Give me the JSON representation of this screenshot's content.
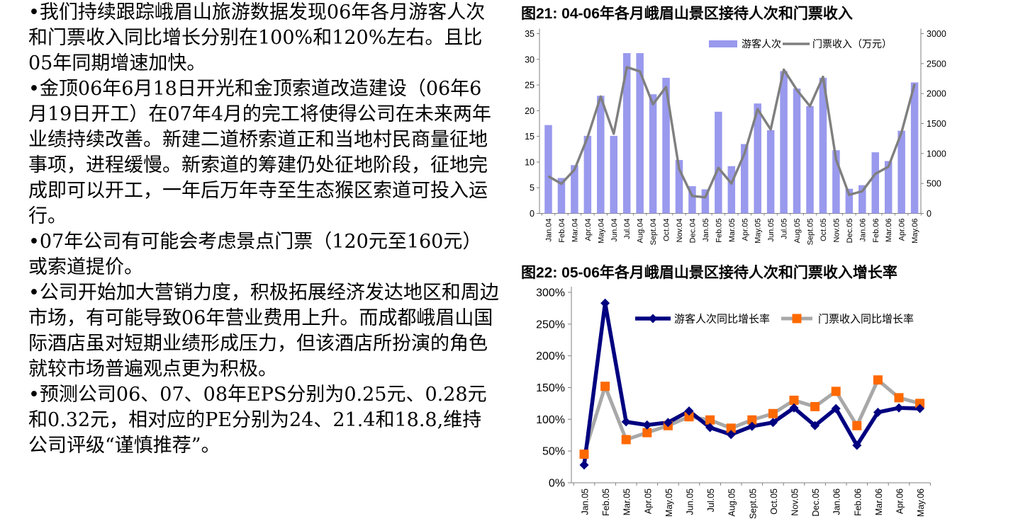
{
  "page_bg": "#ffffff",
  "notes": {
    "paragraphs": [
      {
        "text": "•我们持续跟踪峨眉山旅游数据发现06年各月游客人次和门票收入同比增长分别在100%和120%左右。且比05年同期增速加快。"
      },
      {
        "text": "•金顶06年6月18日开光和金顶索道改造建设（06年6月19日开工）在07年4月的完工将使得公司在未来两年业绩持续改善。新建二道桥索道正和当地村民商量征地事项，进程缓慢。新索道的筹建仍处征地阶段，征地完成即可以开工，一年后万年寺至生态猴区索道可投入运行。"
      },
      {
        "text": "•07年公司有可能会考虑景点门票（120元至160元）或索道提价。"
      },
      {
        "text": "•公司开始加大营销力度，积极拓展经济发达地区和周边市场，有可能导致06年营业费用上升。而成都峨眉山国际酒店虽对短期业绩形成压力，但该酒店所扮演的角色就较市场普遍观点更为积极。"
      },
      {
        "text": "•预测公司06、07、08年EPS分别为0.25元、0.28元和0.32元，相对应的PE分别为24、21.4和18.8,维持公司评级“谨慎推荐”。"
      }
    ]
  },
  "chart_data": [
    {
      "type": "bar",
      "title": "图21: 04-06年各月峨眉山景区接待人次和门票收入",
      "categories": [
        "Jan.04",
        "Feb.04",
        "Mar.04",
        "Apr.04",
        "May.04",
        "Jun.04",
        "Jul.04",
        "Aug.04",
        "Sept.04",
        "Oct.04",
        "Nov.04",
        "Dec.04",
        "Jan.05",
        "Feb.05",
        "Mar.05",
        "Apr.05",
        "May.05",
        "Jun.05",
        "Jul.05",
        "Aug.05",
        "Sept.05",
        "Oct.05",
        "Nov.05",
        "Dec.05",
        "Jan.06",
        "Feb.06",
        "Mar.06",
        "Apr.06",
        "May.06"
      ],
      "series": [
        {
          "name": "游客人次",
          "type": "bar",
          "axis": "left",
          "color": "#9999ee",
          "values": [
            17.2,
            6.9,
            9.4,
            15.1,
            22.9,
            15.1,
            31.2,
            31.2,
            23.2,
            26.4,
            10.4,
            5.3,
            4.7,
            19.8,
            9.2,
            13.5,
            21.4,
            16.2,
            27.7,
            24.3,
            20.9,
            26.4,
            12.3,
            4.8,
            5.5,
            11.9,
            10.2,
            16.1,
            25.5
          ]
        },
        {
          "name": "门票收入（万元）",
          "type": "line",
          "axis": "right",
          "color": "#7f7f7f",
          "values": [
            620,
            495,
            730,
            1270,
            1950,
            1330,
            2440,
            2370,
            1820,
            2110,
            740,
            290,
            270,
            760,
            500,
            1000,
            1740,
            1400,
            2400,
            2060,
            1790,
            2280,
            900,
            310,
            370,
            660,
            780,
            1350,
            2160
          ]
        }
      ],
      "left_axis": {
        "min": 0,
        "max": 35,
        "ticks": [
          0,
          5,
          10,
          15,
          20,
          25,
          30,
          35
        ]
      },
      "right_axis": {
        "min": 0,
        "max": 3000,
        "ticks": [
          0,
          500,
          1000,
          1500,
          2000,
          2500,
          3000
        ]
      },
      "legend_position": "top-center-inside",
      "grid": false
    },
    {
      "type": "line",
      "title": "图22: 05-06年各月峨眉山景区接待人次和门票收入增长率",
      "categories": [
        "Jan.05",
        "Feb.05",
        "Mar.05",
        "Apr.05",
        "May.05",
        "Jun.05",
        "Jul.05",
        "Aug.05",
        "Sept.05",
        "Oct.05",
        "Nov.05",
        "Dec.05",
        "Jan.06",
        "Feb.06",
        "Mar.06",
        "Apr.06",
        "May.06"
      ],
      "series": [
        {
          "name": "游客人次同比增长率",
          "color": "#000080",
          "marker": "diamond",
          "marker_color": "#000080",
          "values_pct": [
            28,
            283,
            96,
            91,
            95,
            113,
            87,
            76,
            89,
            95,
            118,
            90,
            117,
            59,
            111,
            118,
            117
          ]
        },
        {
          "name": "门票收入同比增长率",
          "color": "#a8a8a8",
          "marker": "square",
          "marker_color": "#ff6900",
          "values_pct": [
            45,
            152,
            68,
            79,
            90,
            104,
            99,
            86,
            99,
            109,
            130,
            120,
            144,
            90,
            162,
            134,
            125
          ]
        }
      ],
      "y_axis": {
        "min": 0,
        "max": 300,
        "tick_step": 50,
        "tick_suffix": "%",
        "tick_labels": [
          "0%",
          "50%",
          "100%",
          "150%",
          "200%",
          "250%",
          "300%"
        ]
      },
      "legend_position": "top-center-inside",
      "grid": false
    }
  ]
}
